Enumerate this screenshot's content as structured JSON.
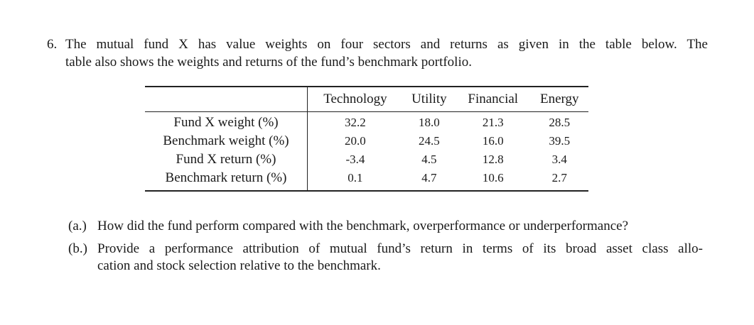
{
  "problem": {
    "number": "6.",
    "line1": "The mutual fund X has value weights on four sectors and returns as given in the table below. The",
    "line2": "table also shows the weights and returns of the fund’s benchmark portfolio."
  },
  "table": {
    "columns": [
      "Technology",
      "Utility",
      "Financial",
      "Energy"
    ],
    "rows": [
      {
        "label": "Fund X weight (%)",
        "values": [
          "32.2",
          "18.0",
          "21.3",
          "28.5"
        ]
      },
      {
        "label": "Benchmark weight (%)",
        "values": [
          "20.0",
          "24.5",
          "16.0",
          "39.5"
        ]
      },
      {
        "label": "Fund X return (%)",
        "values": [
          "-3.4",
          "4.5",
          "12.8",
          "3.4"
        ]
      },
      {
        "label": "Benchmark return (%)",
        "values": [
          "0.1",
          "4.7",
          "10.6",
          "2.7"
        ]
      }
    ]
  },
  "questions": [
    {
      "label": "(a.)",
      "text": "How did the fund perform compared with the benchmark, overperformance or underperformance?"
    },
    {
      "label": "(b.)",
      "line1": "Provide a performance attribution of mutual fund’s return in terms of its broad asset class allo-",
      "line2": "cation and stock selection relative to the benchmark."
    }
  ]
}
